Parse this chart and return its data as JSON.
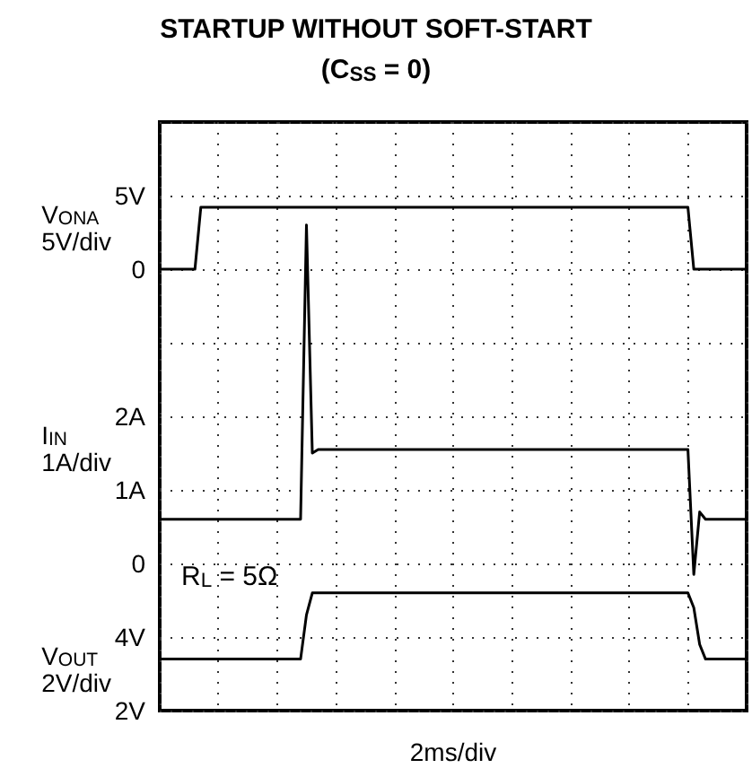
{
  "chart_data": [
    {
      "type": "line",
      "title": "STARTUP WITHOUT SOFT-START",
      "subtitle": "(C$_{SS}$ = 0)",
      "ylabel": "V$_{ONA}$\n5V/div",
      "categories": [
        null,
        null,
        null,
        null,
        null,
        null,
        null,
        null,
        null,
        null,
        null,
        null,
        null,
        null,
        null,
        null,
        null,
        null,
        null,
        null,
        null,
        null,
        null,
        null,
        null,
        null,
        null,
        null,
        null,
        null,
        null,
        null,
        null,
        null,
        null,
        null,
        null,
        null,
        null,
        null,
        null,
        null,
        null,
        null,
        null,
        null,
        null,
        null,
        null,
        null,
        null,
        null,
        null,
        null,
        null,
        null,
        null,
        null,
        null,
        null,
        null,
        null,
        null,
        null,
        null,
        null,
        null,
        null,
        null,
        null,
        null,
        null,
        null,
        null,
        null,
        null,
        null,
        null,
        null,
        null,
        null,
        null,
        null,
        null,
        null,
        null,
        null,
        null,
        null,
        null,
        null,
        null,
        null,
        null,
        null,
        null,
        null,
        null,
        null,
        null,
        null
      ],
      "ylim": [
        -30,
        10
      ],
      "yticks": [
        {
          "value": -30,
          "label": null
        },
        {
          "value": -25,
          "label": null
        },
        {
          "value": -20,
          "label": null
        },
        {
          "value": -15,
          "label": null
        },
        {
          "value": -10,
          "label": null
        },
        {
          "value": -5,
          "label": null
        },
        0,
        {
          "value": 5,
          "label": "5V"
        },
        {
          "value": 10,
          "label": null
        }
      ],
      "tick_labels": "y",
      "grid": true,
      "marker": "none",
      "line_style": "solid",
      "series": [
        {
          "color": "#000000",
          "values": [
            0,
            0,
            0,
            0,
            0,
            0,
            0,
            4.2,
            4.2,
            4.2,
            4.2,
            4.2,
            4.2,
            4.2,
            4.2,
            4.2,
            4.2,
            4.2,
            4.2,
            4.2,
            4.2,
            4.2,
            4.2,
            4.2,
            4.2,
            4.2,
            4.2,
            4.2,
            4.2,
            4.2,
            4.2,
            4.2,
            4.2,
            4.2,
            4.2,
            4.2,
            4.2,
            4.2,
            4.2,
            4.2,
            4.2,
            4.2,
            4.2,
            4.2,
            4.2,
            4.2,
            4.2,
            4.2,
            4.2,
            4.2,
            4.2,
            4.2,
            4.2,
            4.2,
            4.2,
            4.2,
            4.2,
            4.2,
            4.2,
            4.2,
            4.2,
            4.2,
            4.2,
            4.2,
            4.2,
            4.2,
            4.2,
            4.2,
            4.2,
            4.2,
            4.2,
            4.2,
            4.2,
            4.2,
            4.2,
            4.2,
            4.2,
            4.2,
            4.2,
            4.2,
            4.2,
            4.2,
            4.2,
            4.2,
            4.2,
            4.2,
            4.2,
            4.2,
            4.2,
            4.2,
            4.2,
            0,
            0,
            0,
            0,
            0,
            0,
            0,
            0,
            0,
            0
          ]
        }
      ]
    },
    {
      "type": "line",
      "ylabel": "I$_{IN}$\n1A/div",
      "categories": [
        null,
        null,
        null,
        null,
        null,
        null,
        null,
        null,
        null,
        null,
        null,
        null,
        null,
        null,
        null,
        null,
        null,
        null,
        null,
        null,
        null,
        null,
        null,
        null,
        null,
        null,
        null,
        null,
        null,
        null,
        null,
        null,
        null,
        null,
        null,
        null,
        null,
        null,
        null,
        null,
        null,
        null,
        null,
        null,
        null,
        null,
        null,
        null,
        null,
        null,
        null,
        null,
        null,
        null,
        null,
        null,
        null,
        null,
        null,
        null,
        null,
        null,
        null,
        null,
        null,
        null,
        null,
        null,
        null,
        null,
        null,
        null,
        null,
        null,
        null,
        null,
        null,
        null,
        null,
        null,
        null,
        null,
        null,
        null,
        null,
        null,
        null,
        null,
        null,
        null,
        null,
        null,
        null,
        null,
        null,
        null,
        null,
        null,
        null,
        null,
        null
      ],
      "ylim": [
        -2,
        6
      ],
      "yticks": [
        0,
        {
          "value": 1,
          "label": "1A"
        },
        {
          "value": 2,
          "label": "2A"
        }
      ],
      "tick_labels": "y",
      "marker": "none",
      "line_style": "solid",
      "series": [
        {
          "color": "#000000",
          "values": [
            0.6,
            0.6,
            0.6,
            0.6,
            0.6,
            0.6,
            0.6,
            0.6,
            0.6,
            0.6,
            0.6,
            0.6,
            0.6,
            0.6,
            0.6,
            0.6,
            0.6,
            0.6,
            0.6,
            0.6,
            0.6,
            0.6,
            0.6,
            0.6,
            0.6,
            4.6,
            1.5,
            1.55,
            1.55,
            1.55,
            1.55,
            1.55,
            1.55,
            1.55,
            1.55,
            1.55,
            1.55,
            1.55,
            1.55,
            1.55,
            1.55,
            1.55,
            1.55,
            1.55,
            1.55,
            1.55,
            1.55,
            1.55,
            1.55,
            1.55,
            1.55,
            1.55,
            1.55,
            1.55,
            1.55,
            1.55,
            1.55,
            1.55,
            1.55,
            1.55,
            1.55,
            1.55,
            1.55,
            1.55,
            1.55,
            1.55,
            1.55,
            1.55,
            1.55,
            1.55,
            1.55,
            1.55,
            1.55,
            1.55,
            1.55,
            1.55,
            1.55,
            1.55,
            1.55,
            1.55,
            1.55,
            1.55,
            1.55,
            1.55,
            1.55,
            1.55,
            1.55,
            1.55,
            1.55,
            1.55,
            1.55,
            -0.15,
            0.7,
            0.6,
            0.6,
            0.6,
            0.6,
            0.6,
            0.6,
            0.6,
            0.6
          ]
        }
      ]
    },
    {
      "type": "line",
      "xlabel": "2ms/div",
      "ylabel": "V$_{OUT}$\n2V/div",
      "annotations": [
        "R$_{L}$ = 5Ω"
      ],
      "categories": [
        null,
        null,
        null,
        null,
        null,
        null,
        null,
        null,
        null,
        null,
        null,
        null,
        null,
        null,
        null,
        null,
        null,
        null,
        null,
        null,
        null,
        null,
        null,
        null,
        null,
        null,
        null,
        null,
        null,
        null,
        null,
        null,
        null,
        null,
        null,
        null,
        null,
        null,
        null,
        null,
        null,
        null,
        null,
        null,
        null,
        null,
        null,
        null,
        null,
        null,
        null,
        null,
        null,
        null,
        null,
        null,
        null,
        null,
        null,
        null,
        null,
        null,
        null,
        null,
        null,
        null,
        null,
        null,
        null,
        null,
        null,
        null,
        null,
        null,
        null,
        null,
        null,
        null,
        null,
        null,
        null,
        null,
        null,
        null,
        null,
        null,
        null,
        null,
        null,
        null,
        null,
        null,
        null,
        null,
        null,
        null,
        null,
        null,
        null,
        null,
        null
      ],
      "ylim": [
        2,
        18
      ],
      "yticks": [
        {
          "value": 2,
          "label": "2V"
        },
        {
          "value": 4,
          "label": "4V"
        }
      ],
      "tick_labels": "y",
      "marker": "none",
      "line_style": "solid",
      "series": [
        {
          "color": "#000000",
          "values": [
            3.4,
            3.4,
            3.4,
            3.4,
            3.4,
            3.4,
            3.4,
            3.4,
            3.4,
            3.4,
            3.4,
            3.4,
            3.4,
            3.4,
            3.4,
            3.4,
            3.4,
            3.4,
            3.4,
            3.4,
            3.4,
            3.4,
            3.4,
            3.4,
            3.4,
            4.6,
            5.2,
            5.2,
            5.2,
            5.2,
            5.2,
            5.2,
            5.2,
            5.2,
            5.2,
            5.2,
            5.2,
            5.2,
            5.2,
            5.2,
            5.2,
            5.2,
            5.2,
            5.2,
            5.2,
            5.2,
            5.2,
            5.2,
            5.2,
            5.2,
            5.2,
            5.2,
            5.2,
            5.2,
            5.2,
            5.2,
            5.2,
            5.2,
            5.2,
            5.2,
            5.2,
            5.2,
            5.2,
            5.2,
            5.2,
            5.2,
            5.2,
            5.2,
            5.2,
            5.2,
            5.2,
            5.2,
            5.2,
            5.2,
            5.2,
            5.2,
            5.2,
            5.2,
            5.2,
            5.2,
            5.2,
            5.2,
            5.2,
            5.2,
            5.2,
            5.2,
            5.2,
            5.2,
            5.2,
            5.2,
            5.2,
            4.8,
            3.8,
            3.4,
            3.4,
            3.4,
            3.4,
            3.4,
            3.4,
            3.4,
            3.4
          ]
        }
      ]
    }
  ]
}
